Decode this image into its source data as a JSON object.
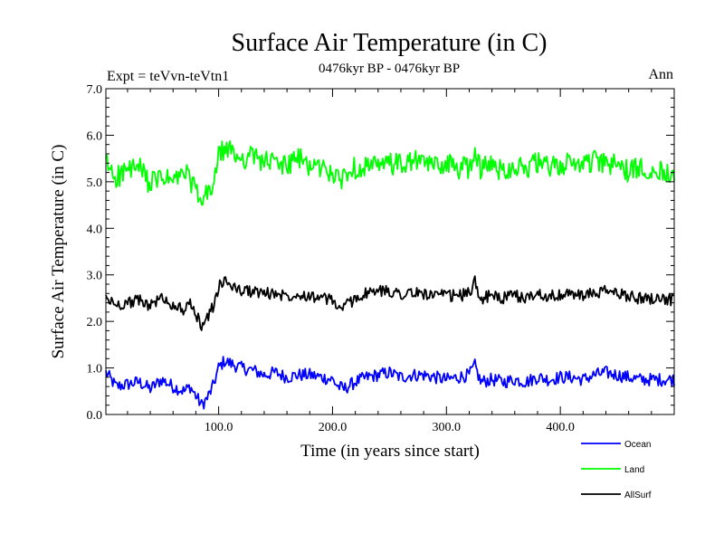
{
  "chart_data": {
    "type": "line",
    "title": "Surface Air Temperature (in C)",
    "subtitle": "0476kyr BP - 0476kyr BP",
    "experiment_label": "Expt = teVvn-teVtn1",
    "period_label": "Ann",
    "xlabel": "Time (in years since start)",
    "ylabel": "Surface Air Temperature (in C)",
    "xlim": [
      1,
      500
    ],
    "ylim": [
      0.0,
      7.0
    ],
    "xticks": [
      100.0,
      200.0,
      300.0,
      400.0
    ],
    "xtick_labels": [
      "100.0",
      "200.0",
      "300.0",
      "400.0"
    ],
    "yticks": [
      0.0,
      1.0,
      2.0,
      3.0,
      4.0,
      5.0,
      6.0,
      7.0
    ],
    "ytick_labels": [
      "0.0",
      "1.0",
      "2.0",
      "3.0",
      "4.0",
      "5.0",
      "6.0",
      "7.0"
    ],
    "grid": false,
    "legend_position": "bottom-right, outside plot",
    "x": [
      1,
      10,
      20,
      30,
      40,
      50,
      60,
      70,
      75,
      80,
      85,
      90,
      95,
      100,
      105,
      110,
      120,
      130,
      140,
      150,
      160,
      170,
      180,
      190,
      200,
      205,
      210,
      220,
      230,
      240,
      250,
      260,
      270,
      280,
      290,
      300,
      310,
      320,
      325,
      330,
      340,
      350,
      360,
      370,
      380,
      390,
      400,
      410,
      420,
      430,
      440,
      450,
      460,
      470,
      480,
      490,
      500
    ],
    "series": [
      {
        "name": "Ocean",
        "color": "#0000ff",
        "values": [
          0.9,
          0.6,
          0.65,
          0.7,
          0.55,
          0.75,
          0.6,
          0.5,
          0.6,
          0.4,
          0.2,
          0.35,
          0.6,
          1.0,
          1.15,
          1.1,
          1.0,
          0.95,
          0.85,
          0.9,
          0.8,
          0.85,
          0.85,
          0.8,
          0.75,
          0.6,
          0.55,
          0.7,
          0.8,
          0.85,
          0.9,
          0.8,
          0.85,
          0.85,
          0.8,
          0.75,
          0.8,
          0.85,
          1.05,
          0.7,
          0.75,
          0.7,
          0.75,
          0.7,
          0.8,
          0.75,
          0.8,
          0.8,
          0.75,
          0.85,
          0.9,
          0.85,
          0.8,
          0.75,
          0.75,
          0.75,
          0.75
        ]
      },
      {
        "name": "Land",
        "color": "#00ff00",
        "values": [
          5.4,
          5.1,
          5.25,
          5.3,
          4.95,
          5.1,
          5.0,
          5.2,
          5.05,
          4.8,
          4.5,
          4.75,
          4.9,
          5.55,
          5.7,
          5.65,
          5.5,
          5.55,
          5.45,
          5.4,
          5.35,
          5.5,
          5.35,
          5.3,
          5.2,
          5.0,
          5.15,
          5.3,
          5.35,
          5.3,
          5.4,
          5.35,
          5.45,
          5.4,
          5.35,
          5.4,
          5.3,
          5.3,
          5.65,
          5.3,
          5.35,
          5.25,
          5.35,
          5.3,
          5.4,
          5.3,
          5.35,
          5.4,
          5.4,
          5.45,
          5.35,
          5.4,
          5.2,
          5.3,
          5.3,
          5.2,
          5.25
        ]
      },
      {
        "name": "AllSurf",
        "color": "#000000",
        "values": [
          2.5,
          2.35,
          2.4,
          2.45,
          2.35,
          2.5,
          2.35,
          2.25,
          2.35,
          2.15,
          1.9,
          2.1,
          2.3,
          2.75,
          2.85,
          2.8,
          2.65,
          2.65,
          2.6,
          2.6,
          2.55,
          2.6,
          2.55,
          2.5,
          2.45,
          2.3,
          2.3,
          2.5,
          2.6,
          2.65,
          2.65,
          2.6,
          2.6,
          2.6,
          2.55,
          2.55,
          2.55,
          2.6,
          2.85,
          2.5,
          2.55,
          2.5,
          2.55,
          2.5,
          2.6,
          2.55,
          2.55,
          2.6,
          2.55,
          2.6,
          2.65,
          2.6,
          2.55,
          2.5,
          2.5,
          2.5,
          2.45
        ]
      }
    ]
  }
}
